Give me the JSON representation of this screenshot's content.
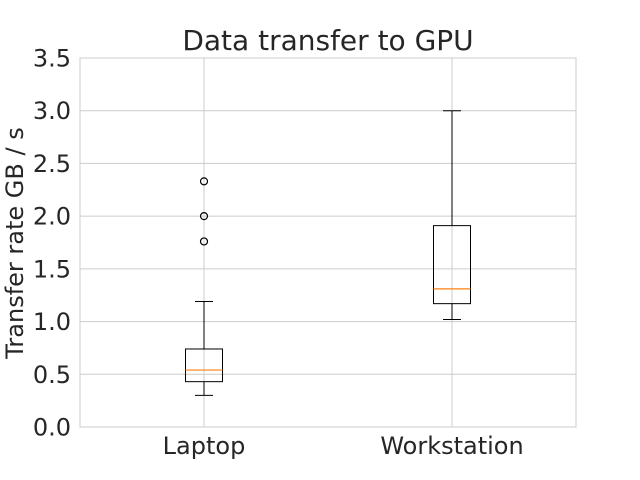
{
  "chart_data": {
    "type": "box",
    "title": "Data transfer to GPU",
    "xlabel": "",
    "ylabel": "Transfer rate GB / s",
    "ylim": [
      0,
      3.5
    ],
    "yticks": [
      "0.0",
      "0.5",
      "1.0",
      "1.5",
      "2.0",
      "2.5",
      "3.0",
      "3.5"
    ],
    "grid": true,
    "categories": [
      "Laptop",
      "Workstation"
    ],
    "boxes": [
      {
        "category": "Laptop",
        "whisker_low": 0.3,
        "q1": 0.43,
        "median": 0.54,
        "q3": 0.74,
        "whisker_high": 1.19,
        "outliers": [
          1.76,
          2.0,
          2.33
        ]
      },
      {
        "category": "Workstation",
        "whisker_low": 1.02,
        "q1": 1.17,
        "median": 1.31,
        "q3": 1.91,
        "whisker_high": 3.0,
        "outliers": []
      }
    ],
    "colors": {
      "box": "#000000",
      "median": "#ff7f0e",
      "grid": "#cccccc",
      "text": "#262626"
    }
  }
}
